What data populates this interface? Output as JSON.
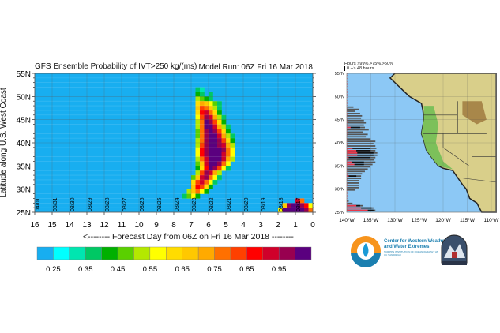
{
  "chart_data": {
    "type": "heatmap",
    "title": "GFS Ensemble Probability of IVT>250 kg/(ms)",
    "subtitle": "Model Run: 06Z Fri 16 Mar 2018",
    "xlabel": "<-------- Forecast Day from 06Z on Fri 16 Mar 2018 --------",
    "ylabel": "Latitude along U.S. West Coast",
    "xlim": [
      16,
      0
    ],
    "ylim": [
      25,
      55
    ],
    "x_ticks": [
      "16",
      "15",
      "14",
      "13",
      "12",
      "11",
      "10",
      "9",
      "8",
      "7",
      "6",
      "5",
      "4",
      "3",
      "2",
      "1",
      "0"
    ],
    "y_ticks": [
      "25N",
      "30N",
      "35N",
      "40N",
      "45N",
      "50N",
      "55N"
    ],
    "date_labels": [
      "04/01",
      "03/31",
      "03/30",
      "03/29",
      "03/28",
      "03/27",
      "03/26",
      "03/25",
      "03/24",
      "03/23",
      "03/22",
      "03/21",
      "03/20",
      "03/19",
      "03/18",
      "03/17"
    ],
    "cell_day_step": 0.25,
    "cell_lat_step": 1,
    "rows": [
      {
        "lat": 51,
        "day_start": 6.75,
        "values": [
          0.3,
          0.25
        ]
      },
      {
        "lat": 50,
        "day_start": 6.75,
        "values": [
          0.35,
          0.3,
          0,
          0.3
        ]
      },
      {
        "lat": 49,
        "day_start": 6.75,
        "values": [
          0.45,
          0.4,
          0.35,
          0.3
        ]
      },
      {
        "lat": 48,
        "day_start": 6.75,
        "values": [
          0.55,
          0.65,
          0.6,
          0.5,
          0.4,
          0.3
        ]
      },
      {
        "lat": 47,
        "day_start": 6.75,
        "values": [
          0.6,
          0.75,
          0.7,
          0.6,
          0.45,
          0.3
        ]
      },
      {
        "lat": 46,
        "day_start": 6.75,
        "values": [
          0.55,
          0.8,
          0.85,
          0.7,
          0.55,
          0.35
        ]
      },
      {
        "lat": 45,
        "day_start": 6.75,
        "values": [
          0.5,
          0.75,
          0.9,
          0.85,
          0.65,
          0.45,
          0.3
        ]
      },
      {
        "lat": 44,
        "day_start": 6.75,
        "values": [
          0.45,
          0.7,
          0.95,
          0.9,
          0.75,
          0.55,
          0.35
        ]
      },
      {
        "lat": 43,
        "day_start": 6.75,
        "values": [
          0.45,
          0.7,
          0.95,
          0.95,
          0.85,
          0.65,
          0.45,
          0.3
        ]
      },
      {
        "lat": 42,
        "day_start": 6.75,
        "values": [
          0.4,
          0.7,
          0.9,
          1.0,
          0.9,
          0.75,
          0.55,
          0.35
        ]
      },
      {
        "lat": 41,
        "day_start": 6.75,
        "values": [
          0.4,
          0.7,
          0.9,
          0.95,
          0.95,
          0.85,
          0.65,
          0.45,
          0.3
        ]
      },
      {
        "lat": 40,
        "day_start": 6.75,
        "values": [
          0.45,
          0.7,
          0.9,
          1.0,
          0.95,
          0.9,
          0.75,
          0.55,
          0.35
        ]
      },
      {
        "lat": 39,
        "day_start": 6.75,
        "values": [
          0.45,
          0.75,
          0.9,
          0.95,
          1.0,
          0.9,
          0.85,
          0.65,
          0.45
        ]
      },
      {
        "lat": 38,
        "day_start": 6.75,
        "values": [
          0.5,
          0.8,
          0.9,
          1.0,
          0.95,
          1.0,
          0.9,
          0.7,
          0.5
        ]
      },
      {
        "lat": 37,
        "day_start": 6.75,
        "values": [
          0.5,
          0.8,
          0.9,
          1.0,
          1.0,
          0.95,
          0.85,
          0.7,
          0.5
        ]
      },
      {
        "lat": 36,
        "day_start": 6.75,
        "values": [
          0.45,
          0.7,
          0.85,
          0.95,
          1.0,
          0.95,
          0.85,
          0.65,
          0.45
        ]
      },
      {
        "lat": 35,
        "day_start": 6.75,
        "values": [
          0.4,
          0.6,
          0.85,
          0.95,
          1.0,
          0.9,
          0.7,
          0.5
        ]
      },
      {
        "lat": 34,
        "day_start": 6.75,
        "values": [
          0.35,
          0.55,
          0.8,
          0.95,
          0.9,
          0.75,
          0.5,
          0.3
        ]
      },
      {
        "lat": 33,
        "day_start": 6.75,
        "values": [
          0.45,
          0.75,
          0.9,
          0.85,
          0.65,
          0.45
        ]
      },
      {
        "lat": 32,
        "day_start": 7.0,
        "values": [
          0.4,
          0.6,
          0.85,
          0.9,
          0.7,
          0.5,
          0.3
        ]
      },
      {
        "lat": 31,
        "day_start": 7.0,
        "values": [
          0.55,
          0.75,
          0.85,
          0.7,
          0.5,
          0.3
        ]
      },
      {
        "lat": 30,
        "day_start": 7.0,
        "values": [
          0.6,
          0.8,
          0.75,
          0.55,
          0.35
        ]
      },
      {
        "lat": 29,
        "day_start": 7.25,
        "values": [
          0.45,
          0.6,
          0.7,
          0.5,
          0.35
        ]
      },
      {
        "lat": 28,
        "day_start": 7.5,
        "values": [
          0.3,
          0.4,
          0.5,
          0.35
        ]
      },
      {
        "lat": 27,
        "day_start": 1.0,
        "values": [
          0.85,
          0.7
        ]
      },
      {
        "lat": 26,
        "day_start": 1.75,
        "values": [
          0.6,
          0.9,
          0.95,
          1.0,
          0.9,
          0.8,
          0.5
        ]
      },
      {
        "lat": 25,
        "day_start": 2.0,
        "values": [
          0.5,
          0.95,
          1.0,
          1.0,
          1.0,
          1.0,
          0.9,
          0.7
        ]
      }
    ],
    "colorbar": {
      "boundaries": [
        0.2,
        0.25,
        0.3,
        0.35,
        0.4,
        0.45,
        0.5,
        0.55,
        0.6,
        0.65,
        0.7,
        0.75,
        0.8,
        0.85,
        0.9,
        0.95
      ],
      "labels": [
        "0.25",
        "0.35",
        "0.45",
        "0.55",
        "0.65",
        "0.75",
        "0.85",
        "0.95"
      ],
      "colors": [
        "#18aef0",
        "#00ffff",
        "#00e6b0",
        "#00c864",
        "#00b000",
        "#5ad000",
        "#b4e800",
        "#ffff00",
        "#ffdc00",
        "#ffc800",
        "#ffaa00",
        "#ff7000",
        "#ff4000",
        "#ff0000",
        "#d0002a",
        "#980050",
        "#5a007f"
      ]
    },
    "background_color": "#18aef0"
  },
  "map": {
    "legend_line1": "Hours >99%,>75%,>50%",
    "legend_line2": "0 --> 48 hours",
    "lat_labels": [
      "25°N",
      "30°N",
      "35°N",
      "40°N",
      "45°N",
      "50°N",
      "55°N"
    ],
    "lon_labels": [
      "140°W",
      "135°W",
      "130°W",
      "125°W",
      "120°W",
      "115°W",
      "110°W"
    ],
    "hours_bars": [
      {
        "lat": 47.7,
        "h50": 7
      },
      {
        "lat": 47.2,
        "h50": 13
      },
      {
        "lat": 46.8,
        "h50": 9
      },
      {
        "lat": 46.3,
        "h50": 14
      },
      {
        "lat": 45.8,
        "h50": 16
      },
      {
        "lat": 45.3,
        "h50": 15
      },
      {
        "lat": 44.8,
        "h50": 18
      },
      {
        "lat": 44.3,
        "h50": 20
      },
      {
        "lat": 43.8,
        "h50": 18
      },
      {
        "lat": 43.3,
        "h99": 4,
        "h75": 14,
        "h50": 19
      },
      {
        "lat": 42.8,
        "h50": 23
      },
      {
        "lat": 42.3,
        "h50": 17
      },
      {
        "lat": 41.8,
        "h50": 22
      },
      {
        "lat": 41.3,
        "h50": 20
      },
      {
        "lat": 40.8,
        "h50": 25
      },
      {
        "lat": 40.3,
        "h50": 30
      },
      {
        "lat": 39.8,
        "h50": 28
      },
      {
        "lat": 39.3,
        "h50": 30
      },
      {
        "lat": 38.8,
        "h99": 6,
        "h75": 24,
        "h50": 31
      },
      {
        "lat": 38.3,
        "h99": 10,
        "h75": 25,
        "h50": 30
      },
      {
        "lat": 37.8,
        "h99": 11,
        "h75": 28,
        "h50": 32
      },
      {
        "lat": 37.3,
        "h99": 11,
        "h75": 28,
        "h50": 32
      },
      {
        "lat": 36.8,
        "h99": 2,
        "h75": 24,
        "h50": 30
      },
      {
        "lat": 36.3,
        "h50": 29
      },
      {
        "lat": 35.8,
        "h99": 5,
        "h75": 18,
        "h50": 30
      },
      {
        "lat": 35.3,
        "h99": 8,
        "h75": 18,
        "h50": 27
      },
      {
        "lat": 34.8,
        "h50": 24
      },
      {
        "lat": 34.3,
        "h50": 22
      },
      {
        "lat": 33.8,
        "h50": 19
      },
      {
        "lat": 33.3,
        "h50": 16
      },
      {
        "lat": 32.8,
        "h99": 2,
        "h75": 10,
        "h50": 15
      },
      {
        "lat": 32.3,
        "h50": 15
      },
      {
        "lat": 31.8,
        "h50": 13
      },
      {
        "lat": 31.3,
        "h50": 13
      },
      {
        "lat": 30.8,
        "h50": 13
      },
      {
        "lat": 30.3,
        "h50": 13
      },
      {
        "lat": 29.8,
        "h50": 9
      },
      {
        "lat": 27.4,
        "h50": 2
      },
      {
        "lat": 26.9,
        "h50": 6
      },
      {
        "lat": 26.4,
        "h99": 10,
        "h75": 14,
        "h50": 17
      },
      {
        "lat": 25.9,
        "h99": 15,
        "h75": 26,
        "h50": 28
      },
      {
        "lat": 25.4,
        "h99": 22,
        "h75": 28,
        "h50": 30
      }
    ]
  },
  "logos": {
    "cw3e_line1": "Center for Western Weather",
    "cw3e_line2": "and Water Extremes",
    "cw3e_line3": "SCRIPPS INSTITUTION OF OCEANOGRAPHY AT UC SAN DIEGO",
    "second_logo_text": "PLYMOUTH STATE METEOROLOGY"
  }
}
